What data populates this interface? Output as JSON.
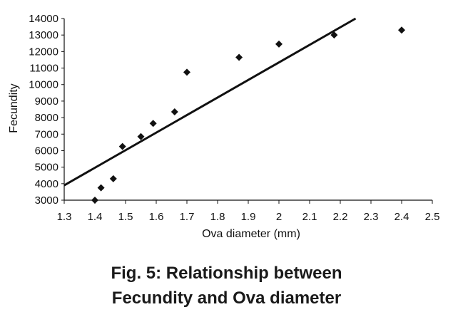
{
  "chart_data": {
    "type": "scatter",
    "xlabel": "Ova diameter (mm)",
    "ylabel": "Fecundity",
    "xlim": [
      1.3,
      2.5
    ],
    "ylim": [
      3000,
      14000
    ],
    "x_ticks": [
      "1.3",
      "1.4",
      "1.5",
      "1.6",
      "1.7",
      "1.8",
      "1.9",
      "2",
      "2.1",
      "2.2",
      "2.3",
      "2.4",
      "2.5"
    ],
    "y_ticks": [
      "3000",
      "4000",
      "5000",
      "6000",
      "7000",
      "8000",
      "9000",
      "10000",
      "11000",
      "12000",
      "13000",
      "14000"
    ],
    "points": [
      {
        "x": 1.4,
        "y": 3000
      },
      {
        "x": 1.42,
        "y": 3750
      },
      {
        "x": 1.46,
        "y": 4300
      },
      {
        "x": 1.49,
        "y": 6250
      },
      {
        "x": 1.55,
        "y": 6850
      },
      {
        "x": 1.59,
        "y": 7650
      },
      {
        "x": 1.66,
        "y": 8350
      },
      {
        "x": 1.7,
        "y": 10750
      },
      {
        "x": 1.87,
        "y": 11650
      },
      {
        "x": 2.0,
        "y": 12450
      },
      {
        "x": 2.18,
        "y": 13000
      },
      {
        "x": 2.4,
        "y": 13300
      }
    ],
    "trendline": {
      "x": [
        1.3,
        2.25
      ],
      "y": [
        3900,
        14000
      ]
    },
    "grid": false,
    "legend": "none",
    "marker": "diamond",
    "color": "#111111"
  },
  "caption": {
    "line1": "Fig. 5: Relationship between",
    "line2": "Fecundity and Ova diameter"
  }
}
